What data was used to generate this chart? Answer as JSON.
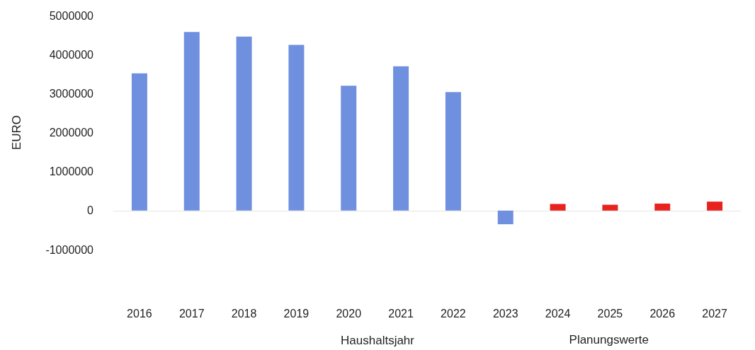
{
  "chart_data": {
    "type": "bar",
    "ylabel": "EURO",
    "xlabel": "Haushaltsjahr",
    "annotations": [
      "Planungswerte"
    ],
    "categories": [
      "2016",
      "2017",
      "2018",
      "2019",
      "2020",
      "2021",
      "2022",
      "2023",
      "2024",
      "2025",
      "2026",
      "2027"
    ],
    "values": [
      3520000,
      4580000,
      4460000,
      4250000,
      3200000,
      3700000,
      3040000,
      -350000,
      170000,
      150000,
      180000,
      230000
    ],
    "colors": [
      "#6f8fdf",
      "#6f8fdf",
      "#6f8fdf",
      "#6f8fdf",
      "#6f8fdf",
      "#6f8fdf",
      "#6f8fdf",
      "#6f8fdf",
      "#e8221e",
      "#e8221e",
      "#e8221e",
      "#e8221e"
    ],
    "ylim": [
      -1000000,
      5000000
    ],
    "yticks": [
      -1000000,
      0,
      1000000,
      2000000,
      3000000,
      4000000,
      5000000
    ]
  }
}
